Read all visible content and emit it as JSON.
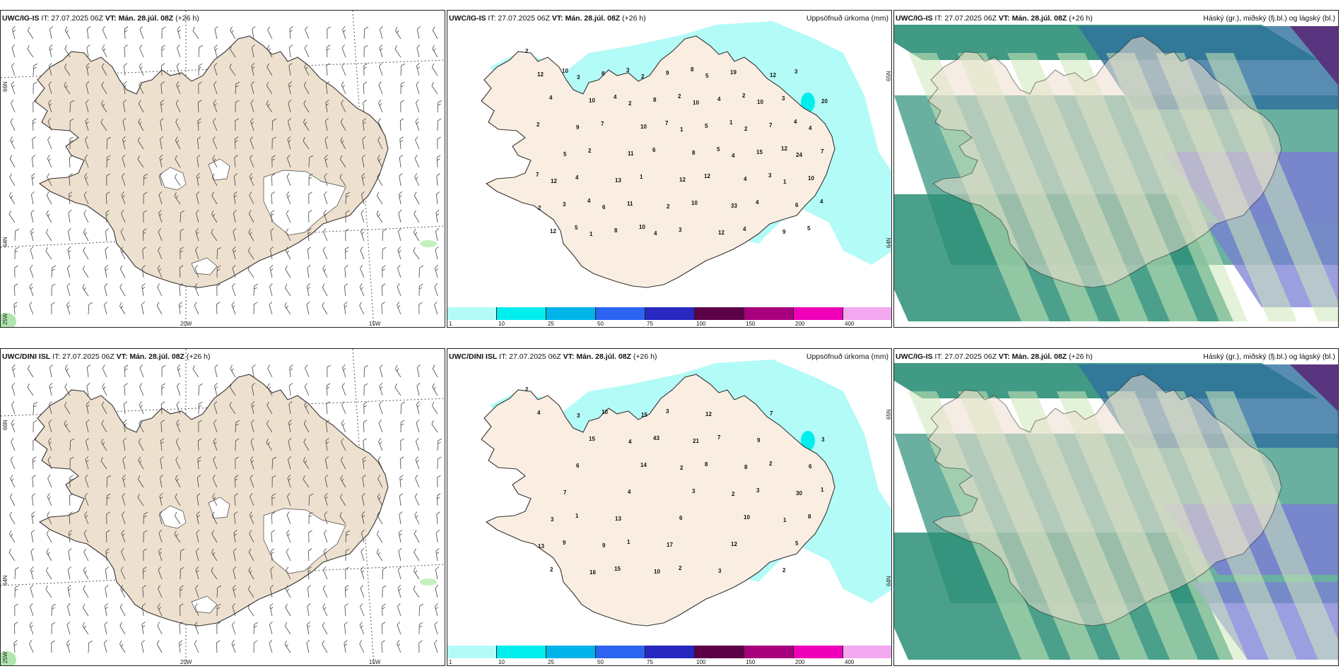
{
  "rows": [
    {
      "model": "UWC/IG-IS",
      "dini_model": "UWC/IG-IS",
      "it": "IT: 27.07.2025 06Z",
      "vt_label": "VT:",
      "vt": "Mán. 28.júl. 08Z",
      "lead": "(+26 h)"
    },
    {
      "model": "UWC/DINI ISL",
      "dini_model": "UWC/DINI ISL",
      "it": "IT: 27.07.2025 06Z",
      "vt_label": "VT:",
      "vt": "Mán. 28.júl. 08Z",
      "lead": "(+26 h)"
    }
  ],
  "panel_titles": {
    "precip": "Uppsöfnuð úrkoma (mm)",
    "clouds": "Háský (gr.), miðský (fj.bl.) og lágský (bl.)"
  },
  "lat_labels": [
    "66N",
    "64N",
    "25W"
  ],
  "lon_labels": [
    "20W",
    "15W"
  ],
  "precip_lat_labels": [
    "65N",
    "64N"
  ],
  "colorbar": {
    "labels": [
      "1",
      "10",
      "25",
      "50",
      "75",
      "100",
      "150",
      "200",
      "400"
    ],
    "colors": [
      "#b3fbf6",
      "#00eeee",
      "#00b4ea",
      "#2a64f0",
      "#2828c0",
      "#5c0047",
      "#a8007c",
      "#ee00b8",
      "#f4a8f0"
    ]
  },
  "precip_values_top": [
    "2",
    "3",
    "2",
    "1",
    "4",
    "1",
    "2",
    "1",
    "2",
    "10",
    "2",
    "24",
    "12",
    "6",
    "4",
    "5",
    "10",
    "4",
    "5",
    "13",
    "2",
    "12",
    "12",
    "20",
    "9",
    "11",
    "12",
    "33",
    "9",
    "12",
    "10",
    "10",
    "8",
    "4",
    "6",
    "12",
    "8",
    "8",
    "5",
    "15",
    "10",
    "3",
    "8",
    "9",
    "4",
    "7",
    "7",
    "4",
    "11",
    "3",
    "19",
    "3",
    "2",
    "2",
    "1",
    "10",
    "4",
    "3",
    "4",
    "7",
    "6",
    "12",
    "4",
    "5",
    "10",
    "4",
    "7",
    "5",
    "3",
    "4",
    "5",
    "3",
    "2",
    "1",
    "12",
    "7",
    "4",
    "10",
    "8",
    "2",
    "4"
  ],
  "precip_values_bottom": [
    "2",
    "3",
    "4",
    "2",
    "2",
    "1",
    "13",
    "16",
    "15",
    "21",
    "8",
    "30",
    "3",
    "9",
    "10",
    "12",
    "9",
    "6",
    "7",
    "13",
    "17",
    "3",
    "7",
    "3",
    "6",
    "4",
    "6",
    "12",
    "2",
    "4",
    "15",
    "14",
    "3",
    "10",
    "5",
    "2",
    "10",
    "43",
    "8",
    "3",
    "8",
    "9",
    "15",
    "3",
    "7",
    "2",
    "1",
    "1",
    "1",
    "2"
  ],
  "colors": {
    "land": "#eee0cf",
    "precip_light": "#b3fbf6",
    "precip_mid": "#00eeee",
    "high_cloud": "#2b8f77",
    "mid_cloud": "#7a7fd4",
    "low_cloud": "#cde8b9"
  }
}
